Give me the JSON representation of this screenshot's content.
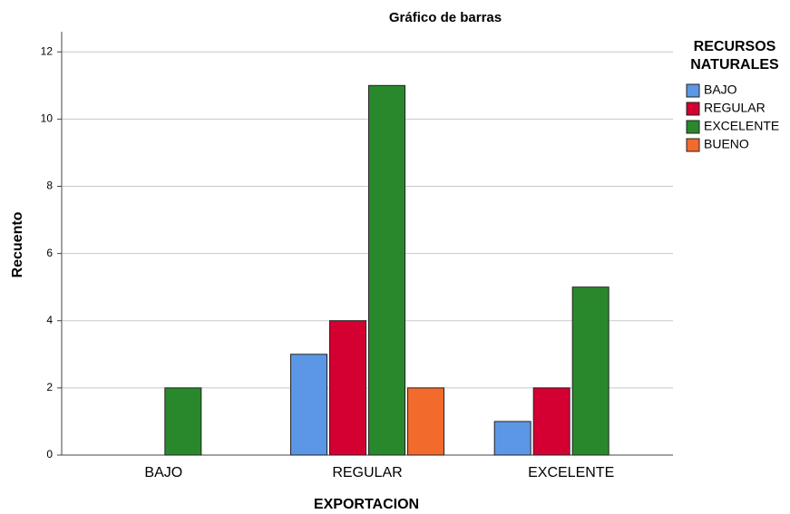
{
  "chart_data": {
    "type": "bar",
    "title": "Gráfico de barras",
    "x_label": "EXPORTACION",
    "y_label": "Recuento",
    "legend_title": [
      "RECURSOS",
      "NATURALES"
    ],
    "categories": [
      "BAJO",
      "REGULAR",
      "EXCELENTE"
    ],
    "series": [
      {
        "name": "BAJO",
        "color": "#5b97e5",
        "values": [
          0,
          3,
          1
        ]
      },
      {
        "name": "REGULAR",
        "color": "#d50032",
        "values": [
          0,
          4,
          2
        ]
      },
      {
        "name": "EXCELENTE",
        "color": "#2a882c",
        "values": [
          2,
          11,
          5
        ]
      },
      {
        "name": "BUENO",
        "color": "#f26a2c",
        "values": [
          0,
          2,
          0
        ]
      }
    ],
    "ylim": [
      0,
      12.6
    ],
    "yticks": [
      0,
      2,
      4,
      6,
      8,
      10,
      12
    ],
    "grid": true,
    "legend": "right"
  }
}
